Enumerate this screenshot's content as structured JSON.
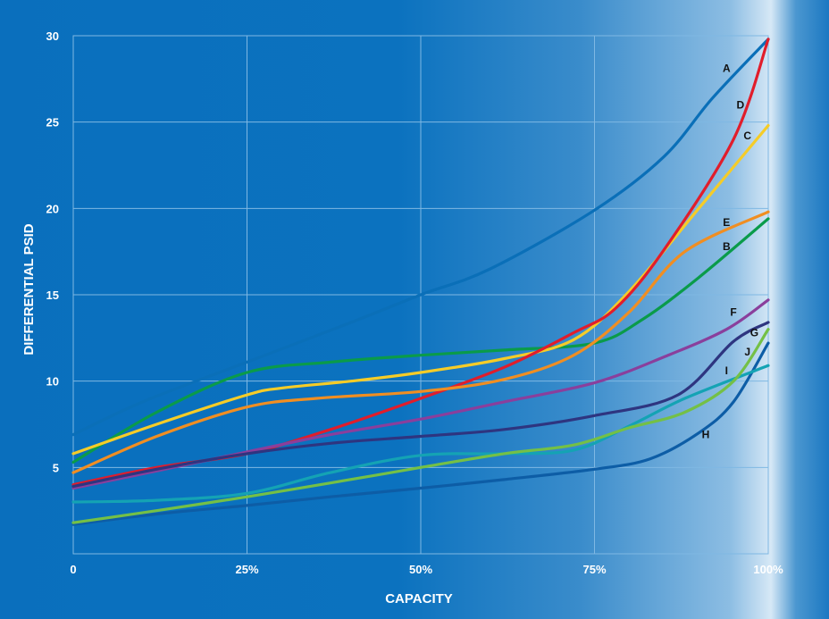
{
  "chart_data": {
    "type": "line",
    "title": "",
    "xlabel": "CAPACITY",
    "ylabel": "DIFFERENTIAL PSID",
    "xlim": [
      0,
      100
    ],
    "ylim": [
      0,
      30
    ],
    "grid": true,
    "x_ticks": [
      {
        "value": 0,
        "label": "0"
      },
      {
        "value": 25,
        "label": "25%"
      },
      {
        "value": 50,
        "label": "50%"
      },
      {
        "value": 75,
        "label": "75%"
      },
      {
        "value": 100,
        "label": "100%"
      }
    ],
    "y_ticks": [
      {
        "value": 5,
        "label": "5"
      },
      {
        "value": 10,
        "label": "10"
      },
      {
        "value": 15,
        "label": "15"
      },
      {
        "value": 20,
        "label": "20"
      },
      {
        "value": 25,
        "label": "25"
      },
      {
        "value": 30,
        "label": "30"
      }
    ],
    "series": [
      {
        "name": "A",
        "color": "#0a6fb8",
        "label_at": [
          94,
          28.1
        ],
        "points": [
          [
            0,
            6.9
          ],
          [
            10,
            8.8
          ],
          [
            25,
            11.1
          ],
          [
            40,
            13.4
          ],
          [
            50,
            15.0
          ],
          [
            60,
            16.5
          ],
          [
            75,
            19.9
          ],
          [
            85,
            23.0
          ],
          [
            92,
            26.4
          ],
          [
            100,
            29.8
          ]
        ]
      },
      {
        "name": "B",
        "color": "#0a9b4a",
        "label_at": [
          94,
          17.8
        ],
        "points": [
          [
            0,
            5.3
          ],
          [
            12,
            8.2
          ],
          [
            25,
            10.5
          ],
          [
            37,
            11.1
          ],
          [
            50,
            11.5
          ],
          [
            62,
            11.8
          ],
          [
            75,
            12.2
          ],
          [
            82,
            13.6
          ],
          [
            90,
            16.0
          ],
          [
            100,
            19.4
          ]
        ]
      },
      {
        "name": "C",
        "color": "#f5cc28",
        "label_at": [
          97,
          24.2
        ],
        "points": [
          [
            0,
            5.8
          ],
          [
            12,
            7.5
          ],
          [
            25,
            9.2
          ],
          [
            30,
            9.6
          ],
          [
            40,
            10.0
          ],
          [
            50,
            10.5
          ],
          [
            62,
            11.3
          ],
          [
            72,
            12.4
          ],
          [
            80,
            15.2
          ],
          [
            90,
            20.0
          ],
          [
            100,
            24.8
          ]
        ]
      },
      {
        "name": "D",
        "color": "#e11d2b",
        "label_at": [
          96,
          26.0
        ],
        "points": [
          [
            0,
            4.0
          ],
          [
            12,
            5.0
          ],
          [
            25,
            5.8
          ],
          [
            37,
            7.2
          ],
          [
            50,
            9.0
          ],
          [
            62,
            10.8
          ],
          [
            72,
            12.8
          ],
          [
            78,
            14.2
          ],
          [
            85,
            17.6
          ],
          [
            95,
            24.0
          ],
          [
            100,
            29.8
          ]
        ]
      },
      {
        "name": "E",
        "color": "#f08e22",
        "label_at": [
          94,
          19.2
        ],
        "points": [
          [
            0,
            4.7
          ],
          [
            12,
            6.8
          ],
          [
            25,
            8.5
          ],
          [
            35,
            9.0
          ],
          [
            50,
            9.4
          ],
          [
            62,
            10.1
          ],
          [
            72,
            11.5
          ],
          [
            80,
            14.0
          ],
          [
            88,
            17.5
          ],
          [
            100,
            19.8
          ]
        ]
      },
      {
        "name": "F",
        "color": "#8a3f9c",
        "label_at": [
          95,
          14.0
        ],
        "points": [
          [
            0,
            3.8
          ],
          [
            12,
            4.8
          ],
          [
            25,
            5.9
          ],
          [
            37,
            6.9
          ],
          [
            50,
            7.8
          ],
          [
            62,
            8.8
          ],
          [
            75,
            9.9
          ],
          [
            85,
            11.4
          ],
          [
            94,
            13.0
          ],
          [
            100,
            14.7
          ]
        ]
      },
      {
        "name": "G",
        "color": "#2e3580",
        "label_at": [
          98,
          12.8
        ],
        "points": [
          [
            0,
            3.9
          ],
          [
            12,
            4.9
          ],
          [
            25,
            5.8
          ],
          [
            37,
            6.4
          ],
          [
            50,
            6.8
          ],
          [
            62,
            7.2
          ],
          [
            75,
            8.0
          ],
          [
            87,
            9.2
          ],
          [
            95,
            12.3
          ],
          [
            100,
            13.4
          ]
        ]
      },
      {
        "name": "H",
        "color": "#0d5da6",
        "label_at": [
          91,
          6.9
        ],
        "points": [
          [
            0,
            1.7
          ],
          [
            12,
            2.3
          ],
          [
            25,
            2.8
          ],
          [
            37,
            3.3
          ],
          [
            50,
            3.8
          ],
          [
            62,
            4.3
          ],
          [
            75,
            4.9
          ],
          [
            83,
            5.5
          ],
          [
            90,
            7.0
          ],
          [
            95,
            8.8
          ],
          [
            100,
            12.2
          ]
        ]
      },
      {
        "name": "I",
        "color": "#14a3b4",
        "label_at": [
          94,
          10.6
        ],
        "points": [
          [
            0,
            3.0
          ],
          [
            12,
            3.1
          ],
          [
            25,
            3.5
          ],
          [
            37,
            4.7
          ],
          [
            50,
            5.7
          ],
          [
            62,
            5.8
          ],
          [
            72,
            6.0
          ],
          [
            80,
            7.4
          ],
          [
            88,
            9.0
          ],
          [
            100,
            10.9
          ]
        ]
      },
      {
        "name": "J",
        "color": "#74c046",
        "label_at": [
          97,
          11.7
        ],
        "points": [
          [
            0,
            1.8
          ],
          [
            12,
            2.5
          ],
          [
            25,
            3.3
          ],
          [
            37,
            4.1
          ],
          [
            50,
            5.0
          ],
          [
            62,
            5.8
          ],
          [
            72,
            6.3
          ],
          [
            80,
            7.3
          ],
          [
            88,
            8.2
          ],
          [
            95,
            10.0
          ],
          [
            100,
            13.0
          ]
        ]
      }
    ]
  }
}
